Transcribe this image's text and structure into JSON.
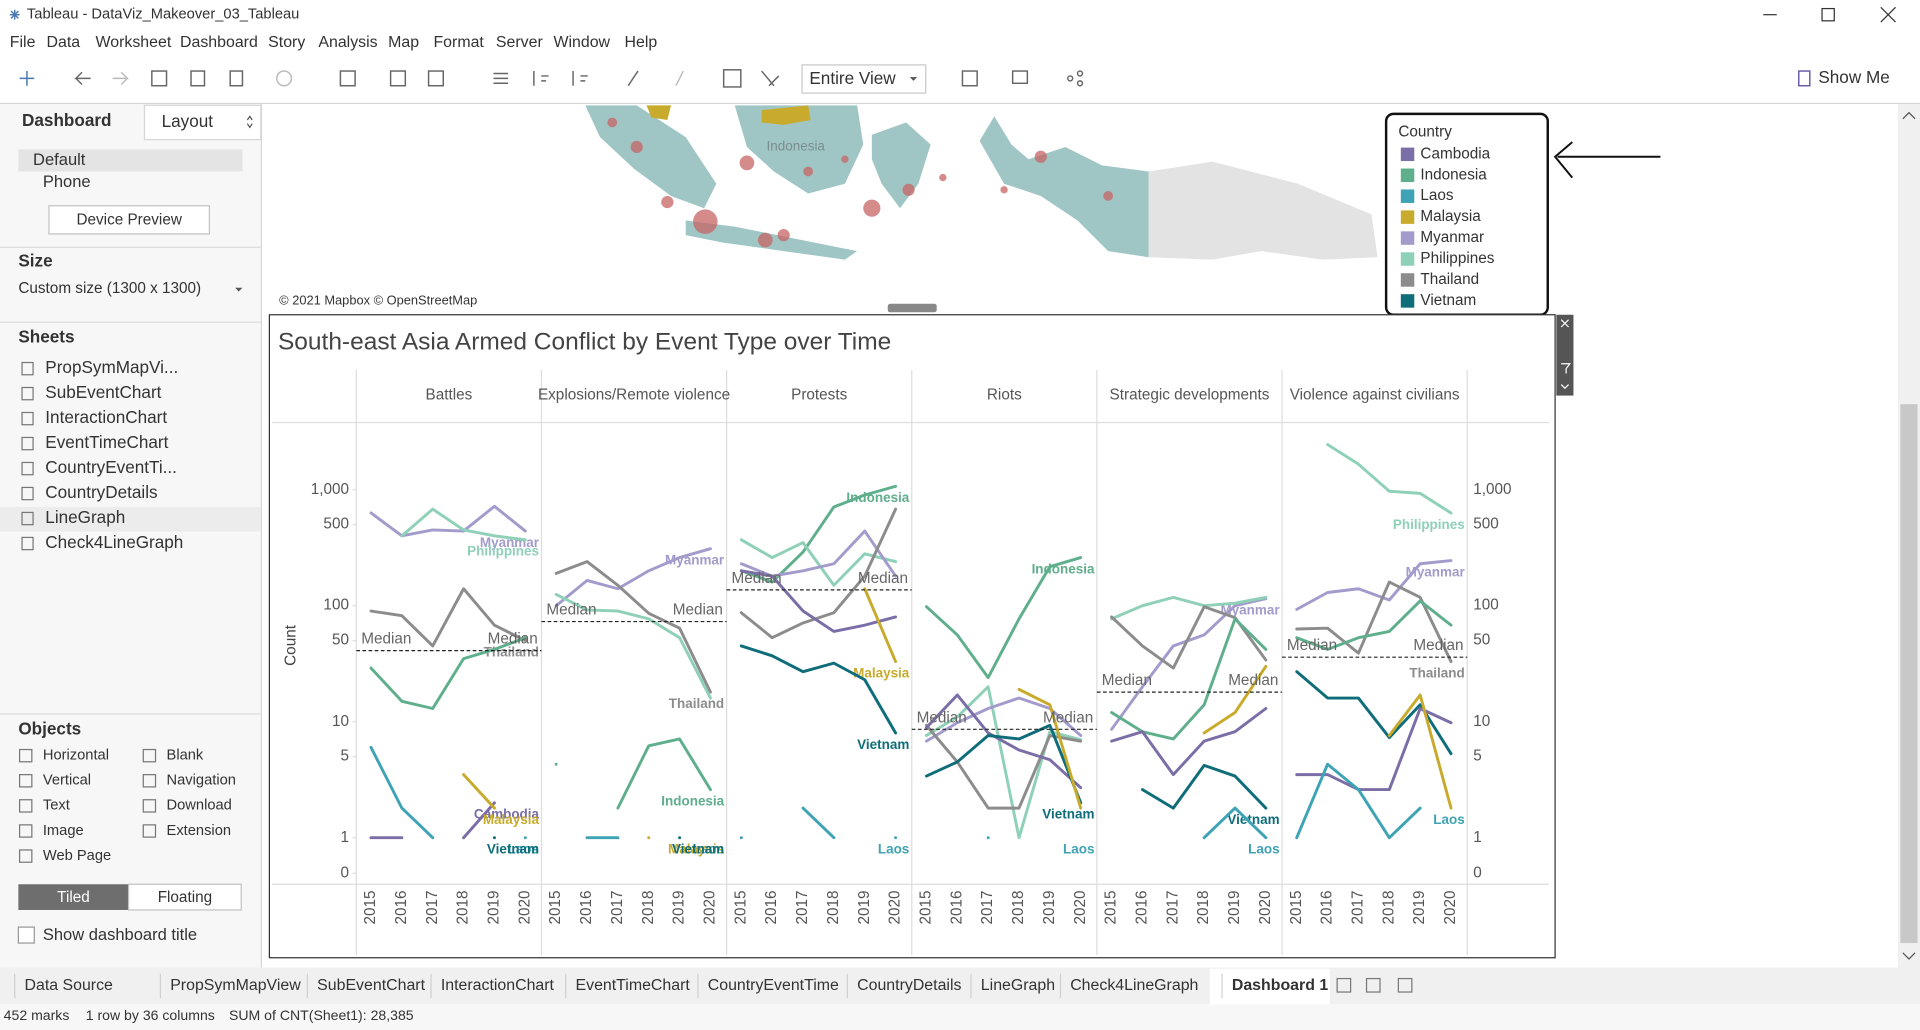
{
  "window": {
    "title": "Tableau - DataViz_Makeover_03_Tableau"
  },
  "menu": [
    "File",
    "Data",
    "Worksheet",
    "Dashboard",
    "Story",
    "Analysis",
    "Map",
    "Format",
    "Server",
    "Window",
    "Help"
  ],
  "toolbar": {
    "view": "Entire View",
    "show_me": "Show Me"
  },
  "sidebar": {
    "tabs": [
      "Dashboard",
      "Layout"
    ],
    "devices": [
      "Default",
      "Phone"
    ],
    "device_preview": "Device Preview",
    "size_title": "Size",
    "size": "Custom size (1300 x 1300)",
    "sheets_title": "Sheets",
    "sheets": [
      "PropSymMapVi...",
      "SubEventChart",
      "InteractionChart",
      "EventTimeChart",
      "CountryEventTi...",
      "CountryDetails",
      "LineGraph",
      "Check4LineGraph"
    ],
    "objects_title": "Objects",
    "objects": [
      "Horizontal",
      "Vertical",
      "Text",
      "Image",
      "Web Page",
      "Blank",
      "Navigation",
      "Download",
      "Extension"
    ],
    "layout_modes": [
      "Tiled",
      "Floating"
    ],
    "show_title": "Show dashboard title"
  },
  "map": {
    "label": "Indonesia",
    "attribution": "© 2021 Mapbox © OpenStreetMap"
  },
  "chart_data": {
    "type": "line",
    "title": "South-east Asia Armed Conflict by Event Type over Time",
    "y_label": "Count",
    "yscale": "log",
    "ylim": [
      0,
      3200
    ],
    "yticks": [
      0,
      1,
      5,
      10,
      50,
      100,
      500,
      {
        "value": 1000,
        "label": "1,000"
      }
    ],
    "categories": [
      "2015",
      "2016",
      "2017",
      "2018",
      "2019",
      "2020"
    ],
    "median_label": "Median",
    "legend": {
      "title": "Country",
      "items": [
        {
          "name": "Cambodia",
          "color": "#7b6ea6"
        },
        {
          "name": "Indonesia",
          "color": "#5fae8c"
        },
        {
          "name": "Laos",
          "color": "#3ea3b5"
        },
        {
          "name": "Malaysia",
          "color": "#c8ab2c"
        },
        {
          "name": "Myanmar",
          "color": "#a39bcc"
        },
        {
          "name": "Philippines",
          "color": "#8fd0b8"
        },
        {
          "name": "Thailand",
          "color": "#8c8c8c"
        },
        {
          "name": "Vietnam",
          "color": "#0f6d7a"
        }
      ]
    },
    "facets": [
      {
        "name": "Battles",
        "median": 41,
        "series": [
          {
            "name": "Myanmar",
            "label": "Myanmar",
            "values": [
              630,
              400,
              450,
              440,
              720,
              440
            ]
          },
          {
            "name": "Philippines",
            "label": "Philippines",
            "values": [
              null,
              400,
              680,
              450,
              400,
              370
            ]
          },
          {
            "name": "Thailand",
            "label": "Thailand",
            "values": [
              90,
              82,
              45,
              140,
              68,
              50
            ]
          },
          {
            "name": "Indonesia",
            "values": [
              29,
              15,
              13,
              35,
              42,
              53
            ]
          },
          {
            "name": "Laos",
            "label": "Laos",
            "values": [
              6,
              1.8,
              1,
              null,
              null,
              1
            ]
          },
          {
            "name": "Cambodia",
            "label": "Cambodia",
            "values": [
              1,
              1,
              null,
              1,
              2,
              null
            ]
          },
          {
            "name": "Malaysia",
            "label": "Malaysia",
            "values": [
              null,
              null,
              null,
              3.5,
              1.8,
              null
            ]
          },
          {
            "name": "Vietnam",
            "label": "Vietnam",
            "values": [
              null,
              null,
              null,
              null,
              1,
              null
            ]
          }
        ]
      },
      {
        "name": "Explosions/Remote violence",
        "median": 73,
        "series": [
          {
            "name": "Myanmar",
            "label": "Myanmar",
            "values": [
              100,
              165,
              140,
              200,
              260,
              310
            ]
          },
          {
            "name": "Thailand",
            "label": "Thailand",
            "values": [
              190,
              240,
              150,
              86,
              64,
              18
            ]
          },
          {
            "name": "Philippines",
            "values": [
              125,
              92,
              90,
              77,
              53,
              16
            ]
          },
          {
            "name": "Indonesia",
            "label": "Indonesia",
            "values": [
              4.3,
              null,
              1.8,
              6.2,
              7.1,
              2.6
            ]
          },
          {
            "name": "Laos",
            "label": "Laos",
            "values": [
              null,
              1,
              1,
              null,
              null,
              null
            ]
          },
          {
            "name": "Malaysia",
            "label": "Malaysia",
            "values": [
              null,
              null,
              null,
              1,
              null,
              null
            ]
          },
          {
            "name": "Vietnam",
            "label": "Vietnam",
            "values": [
              null,
              null,
              null,
              null,
              1,
              null
            ]
          }
        ]
      },
      {
        "name": "Protests",
        "median": 137,
        "series": [
          {
            "name": "Indonesia",
            "label": "Indonesia",
            "values": [
              200,
              160,
              290,
              710,
              900,
              1070
            ]
          },
          {
            "name": "Philippines",
            "values": [
              370,
              260,
              350,
              150,
              280,
              240
            ]
          },
          {
            "name": "Myanmar",
            "values": [
              230,
              180,
              200,
              230,
              440,
              180
            ]
          },
          {
            "name": "Thailand",
            "values": [
              87,
              53,
              71,
              87,
              180,
              680
            ]
          },
          {
            "name": "Cambodia",
            "values": [
              200,
              180,
              90,
              60,
              68,
              80
            ]
          },
          {
            "name": "Malaysia",
            "label": "Malaysia",
            "values": [
              null,
              null,
              null,
              null,
              140,
              33
            ]
          },
          {
            "name": "Vietnam",
            "label": "Vietnam",
            "values": [
              45,
              37,
              27,
              32,
              23,
              8
            ]
          },
          {
            "name": "Laos",
            "label": "Laos",
            "values": [
              1,
              null,
              1.8,
              1,
              null,
              1
            ]
          }
        ]
      },
      {
        "name": "Riots",
        "median": 8.6,
        "series": [
          {
            "name": "Indonesia",
            "label": "Indonesia",
            "values": [
              98,
              56,
              24,
              77,
              217,
              260
            ]
          },
          {
            "name": "Philippines",
            "values": [
              7.6,
              11,
              20,
              1,
              8.2,
              7
            ]
          },
          {
            "name": "Myanmar",
            "values": [
              6.8,
              9.8,
              13,
              16,
              13,
              7.6
            ]
          },
          {
            "name": "Thailand",
            "values": [
              9.3,
              4.5,
              1.8,
              1.8,
              7.6,
              6.8
            ]
          },
          {
            "name": "Cambodia",
            "values": [
              8.9,
              17,
              8,
              5.7,
              4.7,
              2.7
            ]
          },
          {
            "name": "Vietnam",
            "label": "Vietnam",
            "values": [
              3.4,
              4.5,
              7.6,
              7.1,
              9.3,
              2
            ]
          },
          {
            "name": "Malaysia",
            "values": [
              null,
              null,
              null,
              19,
              14,
              1.8
            ]
          },
          {
            "name": "Laos",
            "label": "Laos",
            "values": [
              null,
              null,
              1,
              null,
              null,
              null
            ]
          }
        ]
      },
      {
        "name": "Strategic developments",
        "median": 18,
        "series": [
          {
            "name": "Myanmar",
            "label": "Myanmar",
            "values": [
              8.6,
              20,
              45,
              56,
              100,
              115
            ]
          },
          {
            "name": "Philippines",
            "values": [
              77,
              100,
              118,
              100,
              105,
              118
            ]
          },
          {
            "name": "Thailand",
            "values": [
              80,
              45,
              29,
              98,
              79,
              34
            ]
          },
          {
            "name": "Indonesia",
            "values": [
              12,
              8.2,
              7.1,
              14,
              77,
              42
            ]
          },
          {
            "name": "Cambodia",
            "values": [
              6.8,
              8.2,
              3.5,
              6.8,
              8.2,
              13
            ]
          },
          {
            "name": "Vietnam",
            "label": "Vietnam",
            "values": [
              null,
              2.6,
              1.8,
              4.2,
              3.4,
              1.8
            ]
          },
          {
            "name": "Malaysia",
            "values": [
              null,
              null,
              null,
              8,
              12,
              30
            ]
          },
          {
            "name": "Laos",
            "label": "Laos",
            "values": [
              null,
              null,
              null,
              1,
              1.8,
              1
            ]
          }
        ]
      },
      {
        "name": "Violence against civilians",
        "median": 36,
        "series": [
          {
            "name": "Philippines",
            "label": "Philippines",
            "values": [
              null,
              2450,
              1660,
              970,
              930,
              630
            ]
          },
          {
            "name": "Myanmar",
            "label": "Myanmar",
            "values": [
              93,
              130,
              140,
              112,
              230,
              245
            ]
          },
          {
            "name": "Thailand",
            "label": "Thailand",
            "values": [
              63,
              64,
              39,
              160,
              118,
              33
            ]
          },
          {
            "name": "Indonesia",
            "values": [
              53,
              42,
              53,
              60,
              110,
              68
            ]
          },
          {
            "name": "Vietnam",
            "values": [
              27,
              16,
              16,
              7.3,
              14,
              5.3
            ]
          },
          {
            "name": "Cambodia",
            "values": [
              3.5,
              3.5,
              2.6,
              2.6,
              13,
              9.8
            ]
          },
          {
            "name": "Laos",
            "label": "Laos",
            "values": [
              1,
              4.3,
              2.6,
              1,
              1.8,
              null
            ]
          },
          {
            "name": "Malaysia",
            "values": [
              null,
              null,
              null,
              7.6,
              17,
              1.8
            ]
          }
        ]
      }
    ]
  },
  "tabs": [
    "Data Source",
    "PropSymMapView",
    "SubEventChart",
    "InteractionChart",
    "EventTimeChart",
    "CountryEventTime",
    "CountryDetails",
    "LineGraph",
    "Check4LineGraph",
    "Dashboard 1"
  ],
  "status": [
    "452 marks",
    "1 row by 36 columns",
    "SUM of CNT(Sheet1): 28,385"
  ]
}
